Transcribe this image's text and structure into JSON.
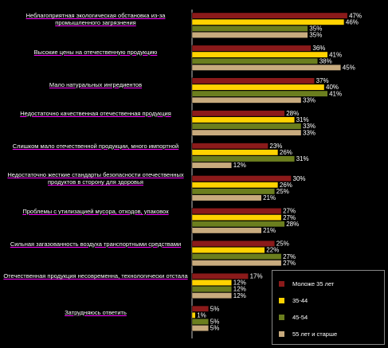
{
  "chart_data": {
    "type": "bar",
    "orientation": "horizontal",
    "title": "",
    "categories": [
      "Неблагоприятная экологическая обстановка из-за промышленного загрязнения",
      "Высокие цены на отечественную продукцию",
      "Мало натуральных ингредиентов",
      "Недостаточно качественная отечественная продукция",
      "Слишком мало отечественной продукции, много импортной",
      "Недостаточно жесткие стандарты безопасности отечественных продуктов в сторону для здоровья",
      "Проблемы с утилизацией мусора, отходов, упаковок",
      "Сильная загазованность воздуха транспортными средствами",
      "Отечественная продукция несовременна, технологически отстала",
      "Затрудняюсь ответить"
    ],
    "series": [
      {
        "name": "Моложе 35 лет",
        "color": "#8b1a1a",
        "values": [
          47,
          36,
          37,
          28,
          23,
          30,
          27,
          25,
          17,
          5
        ]
      },
      {
        "name": "35-44",
        "color": "#ffd200",
        "values": [
          46,
          41,
          40,
          31,
          26,
          26,
          27,
          22,
          12,
          1
        ]
      },
      {
        "name": "45-54",
        "color": "#6b7e1e",
        "values": [
          35,
          38,
          41,
          33,
          31,
          25,
          28,
          27,
          12,
          5
        ]
      },
      {
        "name": "55 лет и старше",
        "color": "#c8ab7e",
        "values": [
          35,
          45,
          33,
          33,
          12,
          21,
          21,
          27,
          12,
          5
        ]
      }
    ],
    "value_suffix": "%",
    "xlim": [
      0,
      50
    ],
    "grid": false,
    "legend_position": "bottom-right"
  }
}
